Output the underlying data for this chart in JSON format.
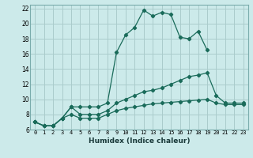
{
  "xlabel": "Humidex (Indice chaleur)",
  "background_color": "#cceaea",
  "grid_color": "#aacccc",
  "line_color": "#1a6b5a",
  "xlim": [
    -0.5,
    23.5
  ],
  "ylim": [
    6,
    22.5
  ],
  "xticks": [
    0,
    1,
    2,
    3,
    4,
    5,
    6,
    7,
    8,
    9,
    10,
    11,
    12,
    13,
    14,
    15,
    16,
    17,
    18,
    19,
    20,
    21,
    22,
    23
  ],
  "yticks": [
    6,
    8,
    10,
    12,
    14,
    16,
    18,
    20,
    22
  ],
  "series": [
    {
      "x": [
        0,
        1,
        2,
        3,
        4,
        5,
        6,
        7,
        8,
        9,
        10,
        11,
        12,
        13,
        14,
        15,
        16,
        17,
        18,
        19
      ],
      "y": [
        7.0,
        6.5,
        6.5,
        7.5,
        9.0,
        9.0,
        9.0,
        9.0,
        9.5,
        16.2,
        18.5,
        19.5,
        21.8,
        21.0,
        21.5,
        21.2,
        18.2,
        18.0,
        19.0,
        16.5
      ]
    },
    {
      "x": [
        0,
        1,
        2,
        3,
        4,
        5,
        6,
        7,
        8,
        9,
        10,
        11,
        12,
        13,
        14,
        15,
        16,
        17,
        18,
        19,
        20,
        21,
        22,
        23
      ],
      "y": [
        7.0,
        6.5,
        6.5,
        7.5,
        9.0,
        8.0,
        8.0,
        8.0,
        8.5,
        9.5,
        10.0,
        10.5,
        11.0,
        11.2,
        11.5,
        12.0,
        12.5,
        13.0,
        13.2,
        13.5,
        10.5,
        9.5,
        9.5,
        9.5
      ]
    },
    {
      "x": [
        0,
        1,
        2,
        3,
        4,
        5,
        6,
        7,
        8,
        9,
        10,
        11,
        12,
        13,
        14,
        15,
        16,
        17,
        18,
        19,
        20,
        21,
        22,
        23
      ],
      "y": [
        7.0,
        6.5,
        6.5,
        7.5,
        8.0,
        7.5,
        7.5,
        7.5,
        8.0,
        8.5,
        8.8,
        9.0,
        9.2,
        9.4,
        9.5,
        9.6,
        9.7,
        9.8,
        9.9,
        10.0,
        9.5,
        9.3,
        9.3,
        9.3
      ]
    }
  ]
}
